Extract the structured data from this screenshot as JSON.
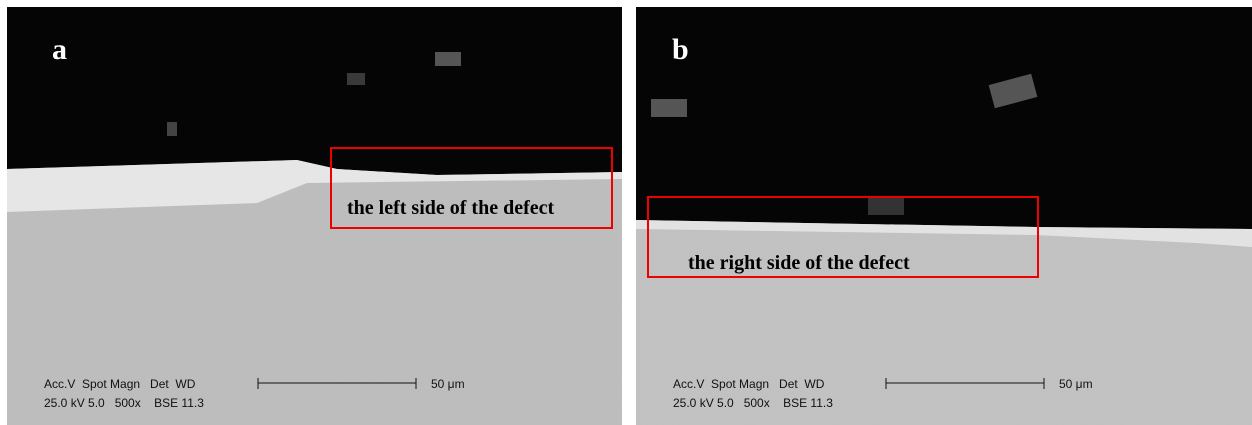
{
  "panels": [
    {
      "label": "a",
      "annotation": "the left side of the defect",
      "info_header": "Acc.V  Spot Magn   Det  WD",
      "info_values": "25.0 kV 5.0   500x    BSE 11.3",
      "scale_bar": "50 μm"
    },
    {
      "label": "b",
      "annotation": "the right side of the defect",
      "info_header": "Acc.V  Spot Magn   Det  WD",
      "info_values": "25.0 kV 5.0   500x    BSE 11.3",
      "scale_bar": "50 μm"
    }
  ]
}
